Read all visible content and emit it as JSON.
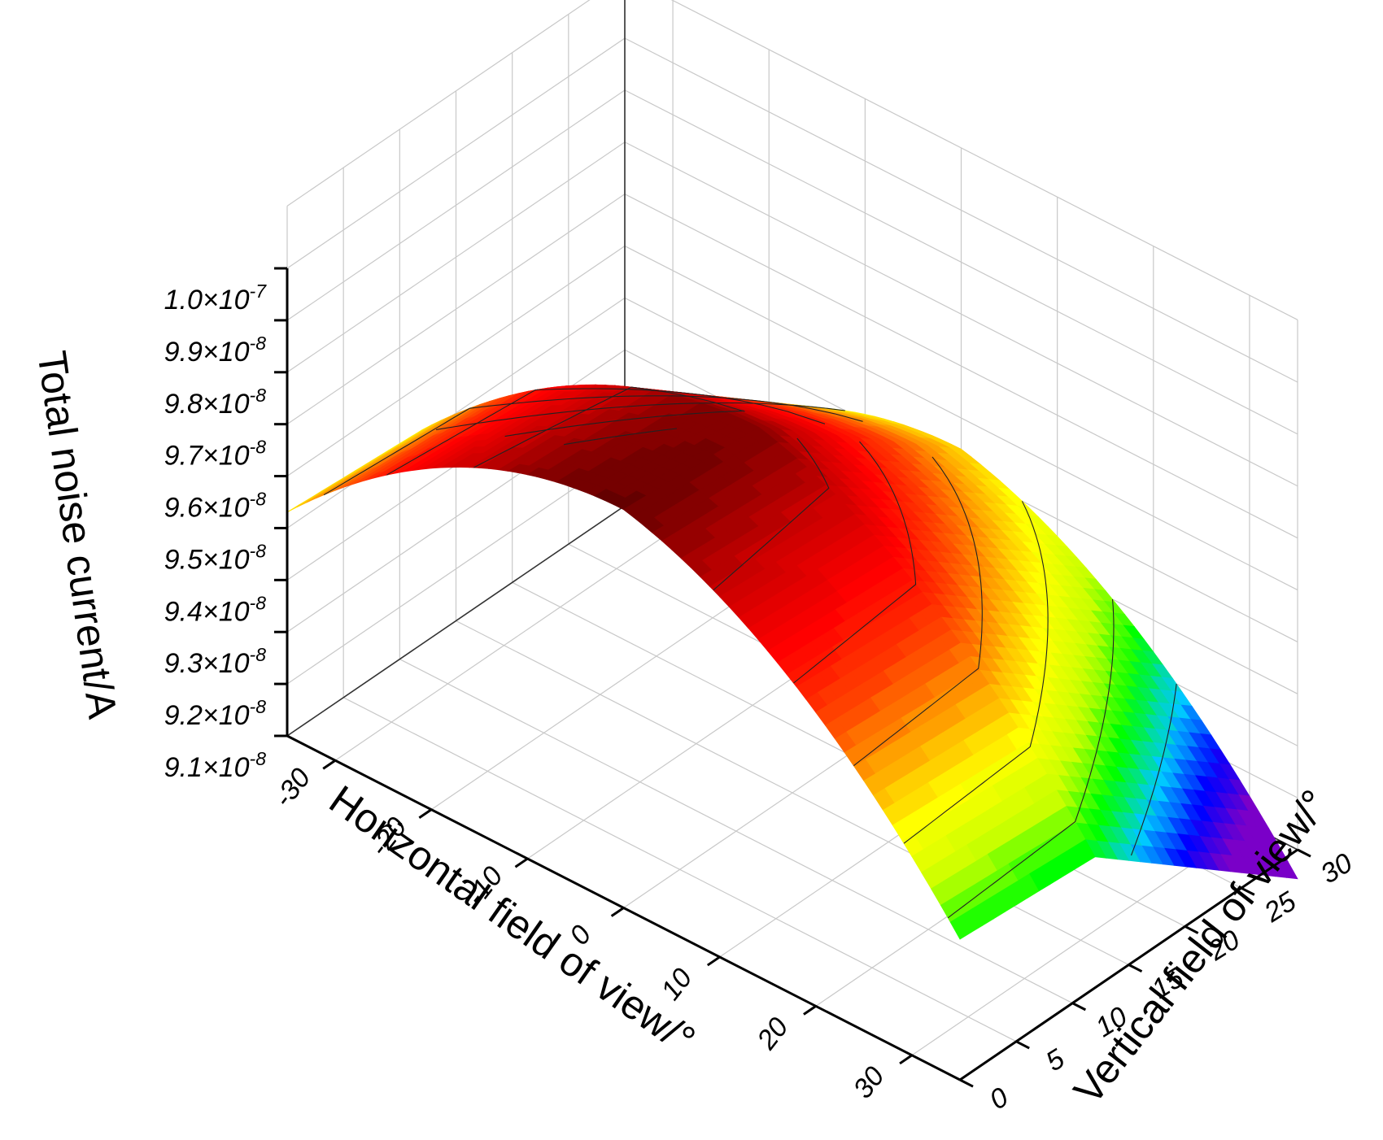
{
  "chart_data": {
    "type": "surface-3d",
    "zlabel": "Total noise current/A",
    "xlabel": "Horizontal field of view/°",
    "ylabel": "Vertical field of view/°",
    "x_ticks": [
      "-30",
      "-20",
      "-10",
      "0",
      "10",
      "20",
      "30"
    ],
    "y_ticks": [
      "0",
      "5",
      "10",
      "15",
      "20",
      "25",
      "30"
    ],
    "z_ticks": [
      {
        "mantissa": "9.1",
        "exp": "-8"
      },
      {
        "mantissa": "9.2",
        "exp": "-8"
      },
      {
        "mantissa": "9.3",
        "exp": "-8"
      },
      {
        "mantissa": "9.4",
        "exp": "-8"
      },
      {
        "mantissa": "9.5",
        "exp": "-8"
      },
      {
        "mantissa": "9.6",
        "exp": "-8"
      },
      {
        "mantissa": "9.7",
        "exp": "-8"
      },
      {
        "mantissa": "9.8",
        "exp": "-8"
      },
      {
        "mantissa": "9.9",
        "exp": "-8"
      },
      {
        "mantissa": "1.0",
        "exp": "-7"
      }
    ],
    "xlim": [
      -35,
      35
    ],
    "ylim": [
      0,
      30
    ],
    "zlim": [
      9.1e-08,
      1e-07
    ],
    "z_scale": 1e-08,
    "grid": true,
    "colormap": [
      "#7a00c8",
      "#0000ff",
      "#00c8ff",
      "#00ff00",
      "#c8ff00",
      "#ffff00",
      "#ffa000",
      "#ff4000",
      "#ff0000",
      "#c80000",
      "#640000"
    ],
    "surface": {
      "function": "z = 9.78e-8 - 1.8e-11*x^2 + 0.5e-11*(15 - |y - 15|)... approximate dome",
      "x_range": [
        -35,
        35
      ],
      "y_range": [
        0,
        30
      ],
      "peak": {
        "x": 0,
        "y": 15,
        "z": 9.82e-08
      },
      "z_at_x_35_y_0": 9.42e-08,
      "z_at_x_35_y_30": 9.15e-08,
      "z_at_x_-35_y_0": 9.57e-08,
      "z_at_x_-35_y_30": 9.3e-08
    },
    "contour_lines": true
  }
}
